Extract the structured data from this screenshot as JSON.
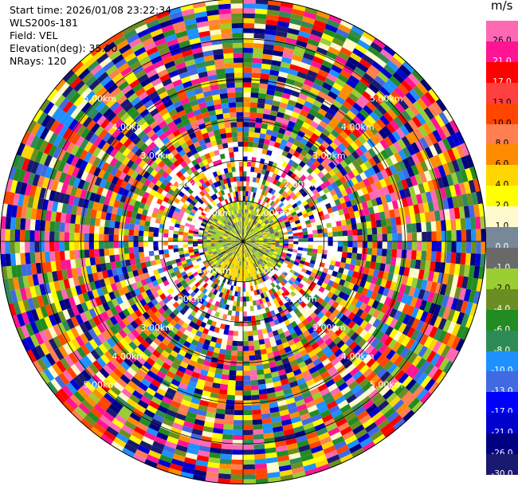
{
  "header": {
    "start_time": "Start time: 2026/01/08 23:22:34",
    "instrument": "WLS200s-181",
    "field": "Field: VEL",
    "elevation": "Elevation(deg): 35.00",
    "nrays": "NRays: 120"
  },
  "chart_data": {
    "type": "heatmap",
    "projection": "polar-ppi",
    "field": "VEL",
    "units": "m/s",
    "nrays": 120,
    "elevation_deg": 35.0,
    "range_rings_km": [
      1.0,
      2.0,
      3.0,
      4.0,
      5.0
    ],
    "range_ring_labels": [
      "1.00km",
      "2.00km",
      "3.00km",
      "4.00km",
      "5.00km"
    ],
    "max_range_km": 6.0,
    "inner_region_km": 1.0,
    "colorbar": {
      "unit_label": "m/s",
      "levels": [
        {
          "label": "26.0",
          "color": "#ff69b4"
        },
        {
          "label": "21.0",
          "color": "#ff1493"
        },
        {
          "label": "17.0",
          "color": "#ff0000"
        },
        {
          "label": "13.0",
          "color": "#ff4040"
        },
        {
          "label": "10.0",
          "color": "#ff4500"
        },
        {
          "label": "8.0",
          "color": "#ff7f50"
        },
        {
          "label": "6.0",
          "color": "#ff8c00"
        },
        {
          "label": "4.0",
          "color": "#ffd700"
        },
        {
          "label": "2.0",
          "color": "#ffff00"
        },
        {
          "label": "1.0",
          "color": "#fffacd"
        },
        {
          "label": "0.0",
          "color": "#778899"
        },
        {
          "label": "-1.0",
          "color": "#696969"
        },
        {
          "label": "-2.0",
          "color": "#9acd32"
        },
        {
          "label": "-4.0",
          "color": "#6b8e23"
        },
        {
          "label": "-6.0",
          "color": "#228b22"
        },
        {
          "label": "-8.0",
          "color": "#2e8b57"
        },
        {
          "label": "-10.0",
          "color": "#1e90ff"
        },
        {
          "label": "-13.0",
          "color": "#4169e1"
        },
        {
          "label": "-17.0",
          "color": "#0000ff"
        },
        {
          "label": "-21.0",
          "color": "#0000cd"
        },
        {
          "label": "-26.0",
          "color": "#000080"
        },
        {
          "label": "-30.0",
          "color": "#191970"
        }
      ]
    },
    "noise_colors": [
      "#ff1493",
      "#ff69b4",
      "#ff0000",
      "#ffff00",
      "#0000cd",
      "#000080",
      "#4169e1",
      "#ff8c00",
      "#228b22",
      "#ff4500",
      "#1e90ff",
      "#9acd32",
      "#191970",
      "#2e8b57",
      "#fffacd",
      "#ffd700",
      "#ff7f50",
      "#6b8e23"
    ],
    "inner_colors": [
      "#9acd32",
      "#9acd32",
      "#9acd32",
      "#778899",
      "#696969",
      "#ffd700",
      "#ffff00"
    ]
  }
}
